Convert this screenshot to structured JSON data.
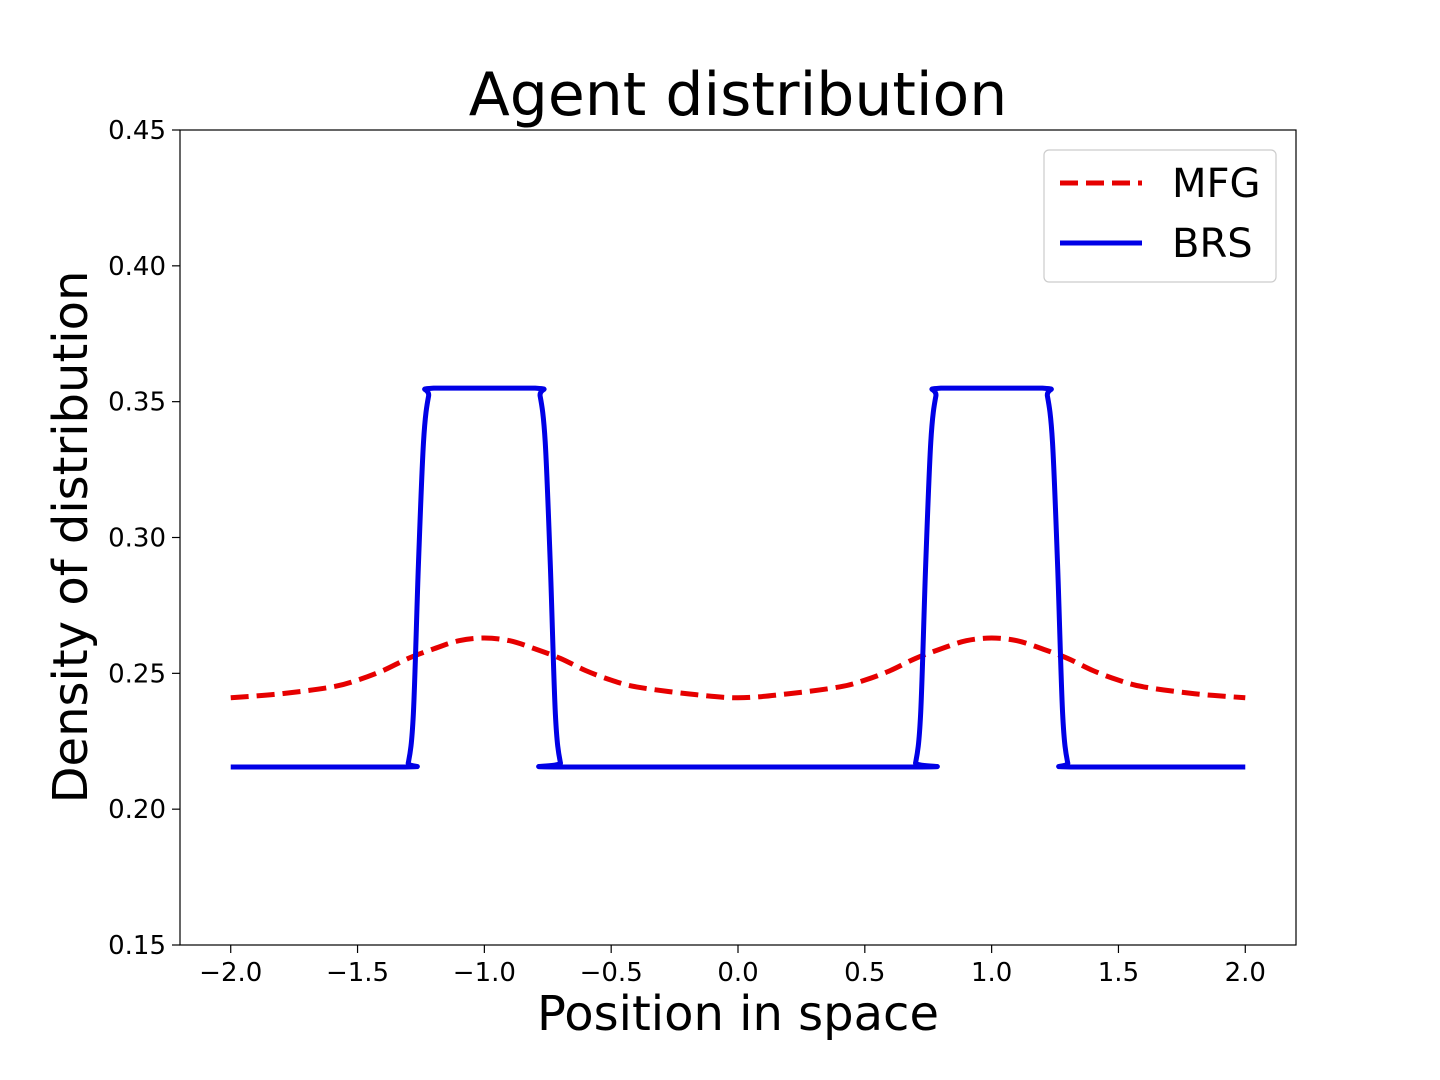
{
  "chart_data": {
    "type": "line",
    "title": "Agent distribution",
    "xlabel": "Position in space",
    "ylabel": "Density of distribution",
    "xlim": [
      -2.2,
      2.2
    ],
    "ylim": [
      0.15,
      0.45
    ],
    "xticks": [
      -2.0,
      -1.5,
      -1.0,
      -0.5,
      0.0,
      0.5,
      1.0,
      1.5,
      2.0
    ],
    "xtick_labels": [
      "−2.0",
      "−1.5",
      "−1.0",
      "−0.5",
      "0.0",
      "0.5",
      "1.0",
      "1.5",
      "2.0"
    ],
    "yticks": [
      0.15,
      0.2,
      0.25,
      0.3,
      0.35,
      0.4,
      0.45
    ],
    "ytick_labels": [
      "0.15",
      "0.20",
      "0.25",
      "0.30",
      "0.35",
      "0.40",
      "0.45"
    ],
    "grid": false,
    "legend_position": "top-right",
    "series": [
      {
        "name": "MFG",
        "color": "#e60000",
        "style": "dashed",
        "x": [
          -2.0,
          -1.8,
          -1.6,
          -1.5,
          -1.4,
          -1.3,
          -1.2,
          -1.1,
          -1.0,
          -0.9,
          -0.8,
          -0.7,
          -0.6,
          -0.5,
          -0.4,
          -0.2,
          0.0,
          0.2,
          0.4,
          0.5,
          0.6,
          0.7,
          0.8,
          0.9,
          1.0,
          1.1,
          1.2,
          1.3,
          1.4,
          1.5,
          1.6,
          1.8,
          2.0
        ],
        "y": [
          0.241,
          0.2425,
          0.245,
          0.2475,
          0.251,
          0.2555,
          0.259,
          0.262,
          0.263,
          0.262,
          0.259,
          0.2555,
          0.251,
          0.2475,
          0.245,
          0.2425,
          0.241,
          0.2425,
          0.245,
          0.2475,
          0.251,
          0.2555,
          0.259,
          0.262,
          0.263,
          0.262,
          0.259,
          0.2555,
          0.251,
          0.2475,
          0.245,
          0.2425,
          0.241
        ]
      },
      {
        "name": "BRS",
        "color": "#0000e6",
        "style": "solid",
        "x": [
          -2.0,
          -1.32,
          -1.3,
          -1.28,
          -1.26,
          -1.24,
          -1.22,
          -1.2,
          -0.8,
          -0.78,
          -0.76,
          -0.74,
          -0.72,
          -0.7,
          -0.68,
          0.68,
          0.7,
          0.72,
          0.74,
          0.76,
          0.78,
          0.8,
          1.2,
          1.22,
          1.24,
          1.26,
          1.28,
          1.3,
          1.32,
          2.0
        ],
        "y": [
          0.2155,
          0.2155,
          0.217,
          0.235,
          0.29,
          0.335,
          0.352,
          0.355,
          0.355,
          0.352,
          0.335,
          0.29,
          0.235,
          0.217,
          0.2155,
          0.2155,
          0.217,
          0.235,
          0.29,
          0.335,
          0.352,
          0.355,
          0.355,
          0.352,
          0.335,
          0.29,
          0.235,
          0.217,
          0.2155,
          0.2155
        ]
      }
    ]
  }
}
